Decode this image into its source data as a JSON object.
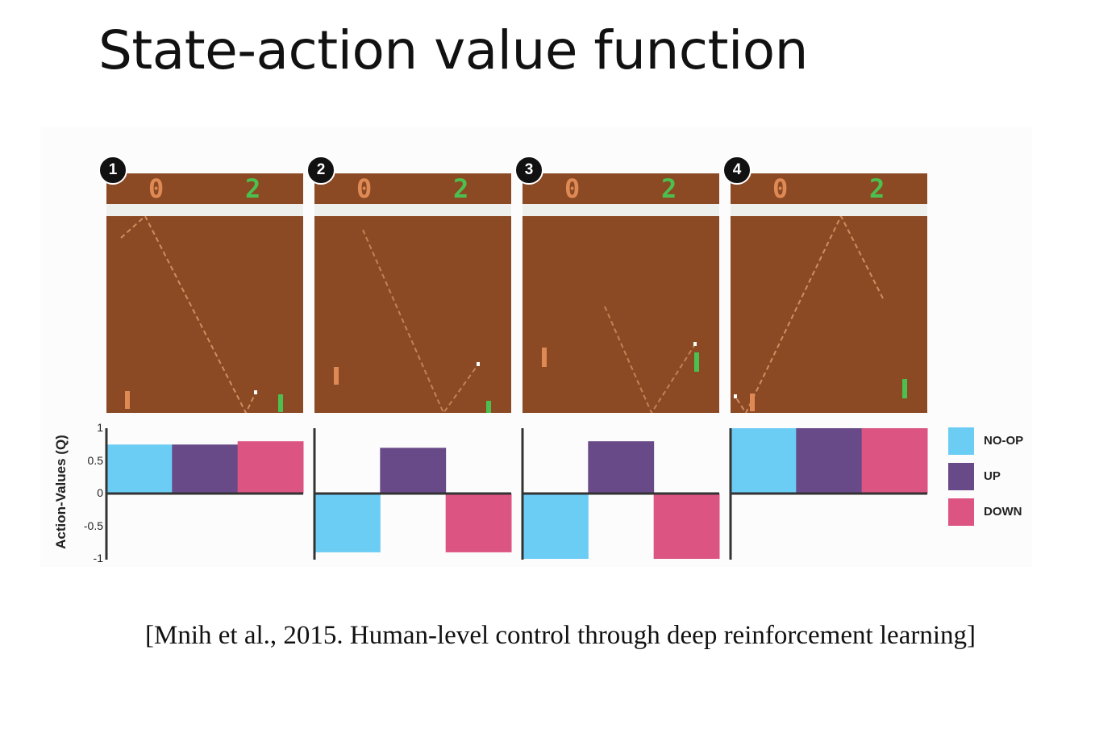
{
  "slide": {
    "title": "State-action value function",
    "citation": "[Mnih et al., 2015. Human-level control through deep reinforcement learning]"
  },
  "frames": [
    {
      "badge": "1",
      "score_left": "0",
      "score_right": "2"
    },
    {
      "badge": "2",
      "score_left": "0",
      "score_right": "2"
    },
    {
      "badge": "3",
      "score_left": "0",
      "score_right": "2"
    },
    {
      "badge": "4",
      "score_left": "0",
      "score_right": "2"
    }
  ],
  "colors": {
    "field": "#8b4a24",
    "left_paddle": "#df8a55",
    "right_paddle": "#4cc04f"
  },
  "chart_data": {
    "type": "bar",
    "ylabel": "Action-Values (Q)",
    "ylim": [
      -1,
      1
    ],
    "yticks": [
      "1",
      "0.5",
      "0",
      "-0.5",
      "-1"
    ],
    "ytick_values": [
      1,
      0.5,
      0,
      -0.5,
      -1
    ],
    "grid": false,
    "legend_position": "right",
    "categories": [
      "1",
      "2",
      "3",
      "4"
    ],
    "series": [
      {
        "name": "NO-OP",
        "color": "#6ccdf4",
        "values": [
          0.75,
          -0.9,
          -1.0,
          1.0
        ]
      },
      {
        "name": "UP",
        "color": "#674a87",
        "values": [
          0.75,
          0.7,
          0.8,
          1.0
        ]
      },
      {
        "name": "DOWN",
        "color": "#dc5482",
        "values": [
          0.8,
          -0.9,
          -1.0,
          1.0
        ]
      }
    ]
  }
}
